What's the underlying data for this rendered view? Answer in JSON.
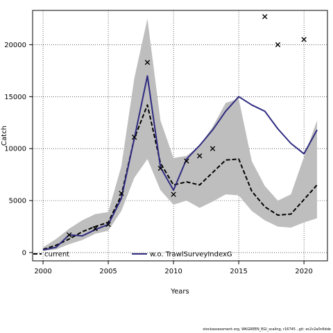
{
  "chart_data": {
    "type": "line",
    "title": "",
    "xlabel": "Years",
    "ylabel": "Catch",
    "xlim": [
      1999.2,
      2021.8
    ],
    "ylim": [
      -800,
      23300
    ],
    "x_ticks": [
      2000,
      2005,
      2010,
      2015,
      2020
    ],
    "y_ticks": [
      0,
      5000,
      10000,
      15000,
      20000
    ],
    "grid": true,
    "legend_position": "bottom-left",
    "confidence_band": {
      "color": "#bebebe",
      "x": [
        2000,
        2001,
        2002,
        2003,
        2004,
        2005,
        2006,
        2007,
        2008,
        2009,
        2010,
        2011,
        2012,
        2013,
        2014,
        2015,
        2016,
        2017,
        2018,
        2019,
        2020,
        2021
      ],
      "upper": [
        500,
        1300,
        2300,
        3100,
        3700,
        3900,
        8300,
        16800,
        22500,
        12700,
        9100,
        9300,
        10300,
        12100,
        14400,
        14800,
        8800,
        6400,
        5000,
        5600,
        9200,
        12700
      ],
      "lower": [
        150,
        300,
        800,
        1200,
        1800,
        2100,
        4000,
        7200,
        9000,
        6000,
        4600,
        5000,
        4300,
        4900,
        5600,
        5500,
        4000,
        3100,
        2500,
        2400,
        2900,
        3300
      ]
    },
    "series": [
      {
        "name": "current",
        "color": "#000000",
        "style": "dashed",
        "x": [
          2000,
          2001,
          2002,
          2003,
          2004,
          2005,
          2006,
          2007,
          2008,
          2009,
          2010,
          2011,
          2012,
          2013,
          2014,
          2015,
          2016,
          2017,
          2018,
          2019,
          2020,
          2021
        ],
        "values": [
          300,
          700,
          1300,
          2000,
          2500,
          2900,
          5500,
          11000,
          14200,
          8600,
          6500,
          6800,
          6500,
          7700,
          8900,
          9000,
          5900,
          4400,
          3600,
          3700,
          5100,
          6500
        ]
      },
      {
        "name": "w.o. TrawlSurveyIndexG",
        "color": "#2e2a7f",
        "style": "solid",
        "x": [
          2000,
          2001,
          2002,
          2003,
          2004,
          2005,
          2006,
          2007,
          2008,
          2009,
          2010,
          2011,
          2012,
          2013,
          2014,
          2015,
          2016,
          2017,
          2018,
          2019,
          2020,
          2021
        ],
        "values": [
          250,
          500,
          1700,
          1600,
          2200,
          2700,
          5200,
          11000,
          17000,
          8200,
          6000,
          9000,
          10300,
          11800,
          13600,
          15000,
          14200,
          13600,
          11900,
          10500,
          9500,
          11800
        ]
      }
    ],
    "observations": {
      "marker": "x",
      "x": [
        2002,
        2004,
        2005,
        2006,
        2007,
        2008,
        2009,
        2010,
        2011,
        2012,
        2013,
        2017,
        2018,
        2020
      ],
      "values": [
        1700,
        2300,
        2700,
        5700,
        11100,
        18300,
        8100,
        5600,
        8800,
        9300,
        10000,
        22700,
        20000,
        20500
      ]
    }
  },
  "footer_text": "stockassessment.org,  WKGREEN_EGI_scaling,  r16745 ,  git:  ec2c2a0c6dde"
}
